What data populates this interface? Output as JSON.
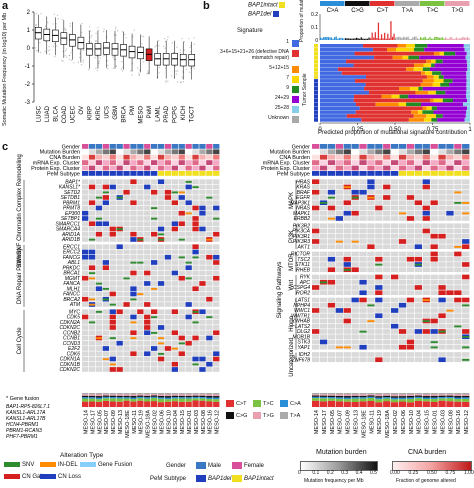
{
  "panel_a": {
    "letter": "a",
    "ylabel": "Somatic Mutation Frequency (in log10) per Mb",
    "yticks": [
      "2",
      "1",
      "0",
      "-1",
      "-2",
      "-3"
    ],
    "categories": [
      "LUSC",
      "LUAD",
      "BLCA",
      "COAD",
      "UCEC",
      "OV",
      "KIRP",
      "KIRC",
      "UCS",
      "GBM",
      "BRCA",
      "PM",
      "MESO",
      "PeM",
      "LAML",
      "PRAD",
      "PCPG",
      "KICH",
      "TGCT"
    ],
    "highlight": "PeM",
    "highlight_color": "#d62020",
    "medians": [
      0.85,
      0.75,
      0.7,
      0.55,
      0.45,
      0.3,
      -0.05,
      -0.05,
      0.0,
      -0.05,
      -0.1,
      -0.2,
      -0.25,
      -0.35,
      -0.6,
      -0.6,
      -0.6,
      -0.65,
      -0.65
    ]
  },
  "panel_b": {
    "letter": "b",
    "legend_bap1_intact": "BAP1intact",
    "legend_bap1_del": "BAP1del",
    "signature_title": "Signature",
    "signatures": [
      {
        "label": "1",
        "color": "#4169e1"
      },
      {
        "label": "3+6+15+21+26 (defective DNA mismatch repair)",
        "color": "#e03030"
      },
      {
        "label": "5+12+15",
        "color": "#ff8c00"
      },
      {
        "label": "7",
        "color": "#ffd700"
      },
      {
        "label": "9",
        "color": "#228b22"
      },
      {
        "label": "24+29",
        "color": "#9400d3"
      },
      {
        "label": "25+28",
        "color": "#87ceeb"
      },
      {
        "label": "Unknown",
        "color": "#a9a9a9"
      }
    ],
    "mut_types": [
      "C>A",
      "C>G",
      "C>T",
      "T>A",
      "T>C",
      "T>G"
    ],
    "mut_colors": [
      "#2a8fd8",
      "#111111",
      "#e03030",
      "#aaaaaa",
      "#7cc242",
      "#e8a0b0"
    ],
    "ylabel_top": "Proportion of mutations",
    "ytick_top": [
      "0.2",
      "0.1",
      "0"
    ],
    "ylabel_left": "Tumor Sample",
    "xlabel": "Predicted proportion of mutational signature contribution",
    "xticks": [
      "0",
      "0.25",
      "0.50",
      "0.75",
      "1"
    ]
  },
  "panel_c": {
    "letter": "c",
    "annotation_rows": [
      "Gender",
      "Mutation Burden",
      "CNA Burden",
      "mRNA Exp. Cluster",
      "Protein Exp. Cluster",
      "PeM Subtype"
    ],
    "left_groups": [
      {
        "name": "SWI/SNF Chromatin Complex Remodeling",
        "genes": [
          "BAP1*",
          "KANSL1*",
          "SETD2",
          "SETDB1",
          "PBRM1",
          "PRMT8",
          "EP300",
          "SETBP1",
          "SMARCC1",
          "SMARCA4",
          "ARID1A",
          "ARID1B"
        ]
      },
      {
        "name": "DNA Repair Pathway",
        "genes": [
          "ERCC1",
          "ERCC2",
          "FANCG",
          "ABL1",
          "PRKDC",
          "BRCA1",
          "MGMT",
          "FANCA",
          "MLH1",
          "FANCC",
          "BRCA2",
          "ATM"
        ]
      },
      {
        "name": "Cell Cycle",
        "genes": [
          "MYC",
          "CDK5",
          "CDKN2A",
          "CDKN2C",
          "CCNB2",
          "CCNB1",
          "CCND3",
          "E2F2",
          "CDK6",
          "CDKN1A",
          "CDKN1B",
          "CDKN2C"
        ]
      }
    ],
    "right_groups": [
      {
        "name": "MAPK",
        "genes": [
          "HRAS",
          "KRAS",
          "BRAF",
          "EGFR",
          "MAP3K1",
          "NRAS",
          "MAPK1",
          "ERBB2"
        ]
      },
      {
        "name": "PI3K",
        "genes": [
          "PIK3R2",
          "PIK3CA",
          "PIK3R1",
          "PIK3R3",
          "AKT1"
        ]
      },
      {
        "name": "MTOR",
        "genes": [
          "RICTOR",
          "TSC2",
          "STK11",
          "RHEB"
        ]
      },
      {
        "name": "Wnt",
        "genes": [
          "RYK",
          "APC",
          "CSPG4",
          "ROR2"
        ]
      },
      {
        "name": "Hippo",
        "genes": [
          "LATS1",
          "NPHP4",
          "WWC1",
          "WWTR1",
          "YWHAB",
          "LATS2",
          "DLG2",
          "MOB1B",
          "STK3",
          "YAP1"
        ]
      },
      {
        "name": "Uncategorized",
        "genes": [
          "IDH2",
          "ZNF678"
        ]
      }
    ],
    "signaling_label": "Signaling Pathways",
    "gene_fusion_note": "* Gene fusion",
    "fusions": [
      "BAP1-RP5-826L7.1",
      "KANSL1-ARL17A",
      "KANSL1-ARL17B",
      "HCN4-PBRM1",
      "PBRM1-RCAN3",
      "PHF7-PBRM1"
    ],
    "samples_left": [
      "MESO-14",
      "MESO-17",
      "MESO-05",
      "MESO-07",
      "MESO-09",
      "MESO-13",
      "MESO-18E",
      "MESO-11",
      "MESO-19",
      "MESO-18A",
      "MESO-02",
      "MESO-06",
      "MESO-10",
      "MESO-04",
      "MESO-15",
      "MESO-01",
      "MESO-03",
      "MESO-08",
      "MESO-16",
      "MESO-12"
    ],
    "samples_right": [
      "MESO-14",
      "MESO-17",
      "MESO-05",
      "MESO-07",
      "MESO-09",
      "MESO-13",
      "MESO-18E",
      "MESO-11",
      "MESO-19",
      "MESO-18A",
      "MESO-02",
      "MESO-06",
      "MESO-10",
      "MESO-04",
      "MESO-15",
      "MESO-01",
      "MESO-03",
      "MESO-08",
      "MESO-16",
      "MESO-12"
    ],
    "base_legend": [
      "C>T",
      "T>C",
      "C>A",
      "C>G",
      "T>G",
      "T>A"
    ],
    "base_legend_colors": [
      "#e03030",
      "#7cc242",
      "#2a8fd8",
      "#111111",
      "#e8a0b0",
      "#aaaaaa"
    ]
  },
  "legend": {
    "alteration_title": "Alteration Type",
    "snv": "SNV",
    "indel": "IN-DEL",
    "fusion": "Gene Fusion",
    "cn_gain": "CN Gain",
    "cn_loss": "CN Loss",
    "gender_label": "Gender",
    "male": "Male",
    "female": "Female",
    "pem_label": "PeM Subtype",
    "bap1_del": "BAP1del",
    "bap1_intact": "BAP1intact",
    "mutation_burden_title": "Mutation burden",
    "mutation_burden_ticks": [
      "0",
      "0.1",
      "0.2",
      "0.3",
      "0.4",
      "0.5"
    ],
    "mutation_burden_label": "Mutation frequency per Mb",
    "cna_burden_title": "CNA burden",
    "cna_burden_ticks": [
      "0.00",
      "0.25",
      "0.50",
      "0.75",
      "1.00"
    ],
    "cna_burden_label": "Fraction of genome altered",
    "colors": {
      "snv": "#2e8b2e",
      "indel": "#ff8c00",
      "fusion": "#87cefa",
      "cn_gain": "#d62020",
      "cn_loss": "#1f3fbf",
      "male": "#3b78c4",
      "female": "#d84f9a",
      "bap1_del": "#1f3fbf",
      "bap1_intact": "#f0e020"
    }
  }
}
